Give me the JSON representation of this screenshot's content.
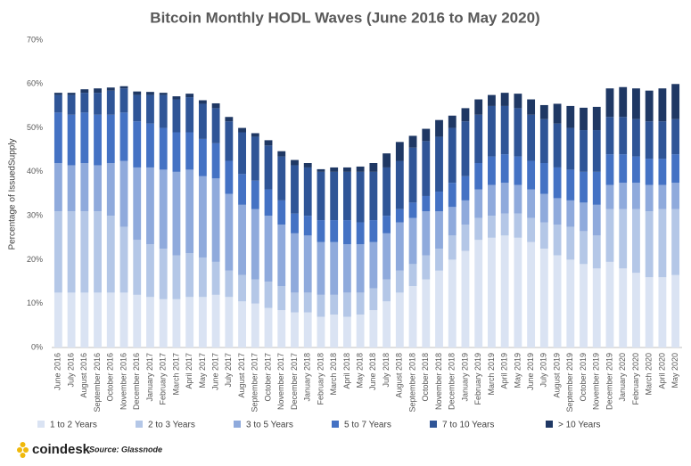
{
  "chart_data": {
    "type": "stacked-bar",
    "title": "Bitcoin Monthly HODL Waves (June 2016 to May 2020)",
    "y_label": "Percentage of IssuedSupply",
    "categories": [
      "June 2016",
      "July 2016",
      "August 2016",
      "September 2016",
      "October 2016",
      "November 2016",
      "December 2016",
      "January 2017",
      "February 2017",
      "March 2017",
      "April 2017",
      "May 2017",
      "June 2017",
      "July 2017",
      "August 2017",
      "September 2017",
      "October 2017",
      "November 2017",
      "December 2017",
      "January 2018",
      "February 2018",
      "March 2018",
      "April 2018",
      "May 2018",
      "June 2018",
      "July 2018",
      "August 2018",
      "September 2018",
      "October 2018",
      "November 2018",
      "December 2018",
      "January 2019",
      "February 2019",
      "March 2019",
      "April 2019",
      "May 2019",
      "June 2019",
      "July 2019",
      "August 2019",
      "September 2019",
      "October 2019",
      "November 2019",
      "December 2019",
      "January 2020",
      "February 2020",
      "March 2020",
      "April 2020",
      "May 2020"
    ],
    "series": [
      {
        "name": "1 to 2 Years",
        "color": "#dae3f3",
        "values": [
          12.5,
          12.5,
          12.5,
          12.5,
          12.5,
          12.5,
          12,
          11.5,
          11,
          11,
          11.5,
          11.5,
          12,
          11.5,
          10.5,
          10,
          9,
          8.5,
          8,
          8,
          7,
          7.5,
          7,
          7.5,
          8.5,
          10.5,
          12.5,
          14,
          15.5,
          17.5,
          20,
          22,
          24.5,
          25,
          25.5,
          25,
          24,
          22.5,
          21,
          20,
          19,
          18,
          19.5,
          18,
          17,
          16,
          16,
          16.5
        ]
      },
      {
        "name": "2 to 3 Years",
        "color": "#b4c7e7",
        "values": [
          18.5,
          18.5,
          18.5,
          18.5,
          17.5,
          15,
          12.5,
          12,
          11.5,
          10,
          10,
          9,
          7.5,
          6,
          6,
          5.5,
          6,
          5.5,
          4.5,
          4.5,
          5,
          4.5,
          5.5,
          5,
          5,
          5,
          5,
          5,
          5.5,
          5,
          5.5,
          6,
          5,
          5,
          5,
          5.5,
          5.5,
          6,
          7,
          7.5,
          7.5,
          7.5,
          12,
          13.5,
          14.5,
          15,
          15.5,
          15
        ]
      },
      {
        "name": "3 to 5 Years",
        "color": "#8faadc",
        "values": [
          11,
          10.5,
          11,
          10.5,
          12,
          15,
          16.5,
          17.5,
          18,
          19,
          19,
          18.5,
          19,
          17.5,
          16,
          16,
          15,
          14,
          13.5,
          13,
          12,
          12,
          11,
          11,
          10.5,
          10.5,
          11,
          10.5,
          10,
          8.5,
          6.5,
          5.5,
          6.5,
          7,
          7,
          6.5,
          6.5,
          6.5,
          6,
          6,
          6.5,
          7,
          5.5,
          6,
          6,
          6,
          5.5,
          6
        ]
      },
      {
        "name": "5 to 7 Years",
        "color": "#4472c4",
        "values": [
          11.5,
          11.5,
          11.5,
          11.5,
          11,
          11,
          10.5,
          10,
          9.5,
          9,
          8.5,
          8.5,
          8,
          7.5,
          7,
          6.5,
          6,
          5.5,
          4.5,
          4.5,
          5,
          5,
          5.5,
          5,
          5,
          4,
          3,
          3.5,
          3.5,
          4.5,
          5.5,
          5.5,
          6,
          6.5,
          6.5,
          6.5,
          6.5,
          7,
          7,
          7,
          7,
          7.5,
          7,
          6.5,
          6,
          6,
          6,
          6.5
        ]
      },
      {
        "name": "7 to 10 Years",
        "color": "#2f5597",
        "values": [
          4,
          4.5,
          4.5,
          5,
          5.5,
          5.5,
          6,
          6.5,
          7.5,
          7.5,
          8,
          8,
          8,
          9,
          9.5,
          10,
          10,
          10,
          11,
          11,
          11,
          11,
          11,
          11.5,
          11,
          11,
          11,
          12.5,
          12.5,
          12.5,
          12.5,
          12.5,
          11,
          11.5,
          11,
          11,
          10.5,
          10,
          10,
          9.5,
          9.5,
          9.5,
          8.5,
          8.5,
          8.5,
          8.5,
          8.5,
          8
        ]
      },
      {
        "name": "> 10 Years",
        "color": "#1f3864",
        "values": [
          0.5,
          0.5,
          0.8,
          1,
          0.7,
          0.5,
          0.8,
          0.7,
          0.5,
          0.7,
          0.8,
          0.8,
          1.1,
          1,
          1,
          0.8,
          1.2,
          1.2,
          1.2,
          1,
          0.6,
          1,
          1,
          1.2,
          2,
          3.2,
          4.3,
          2.7,
          2.8,
          3.8,
          2.8,
          3,
          3.5,
          2.5,
          3,
          3.3,
          3.5,
          3.2,
          4.5,
          5,
          5.1,
          5.3,
          6.5,
          6.8,
          7,
          7,
          7.5,
          8
        ]
      }
    ],
    "ylim": [
      0,
      70
    ],
    "yticks": [
      {
        "value": 0,
        "label": "0%"
      },
      {
        "value": 10,
        "label": "10%"
      },
      {
        "value": 20,
        "label": "20%"
      },
      {
        "value": 30,
        "label": "30%"
      },
      {
        "value": 40,
        "label": "40%"
      },
      {
        "value": 50,
        "label": "50%"
      },
      {
        "value": 60,
        "label": "60%"
      },
      {
        "value": 70,
        "label": "70%"
      }
    ],
    "grid": false,
    "legend": "bottom"
  },
  "footer": {
    "brand": "coindesk",
    "source": "Source: Glassnode"
  }
}
